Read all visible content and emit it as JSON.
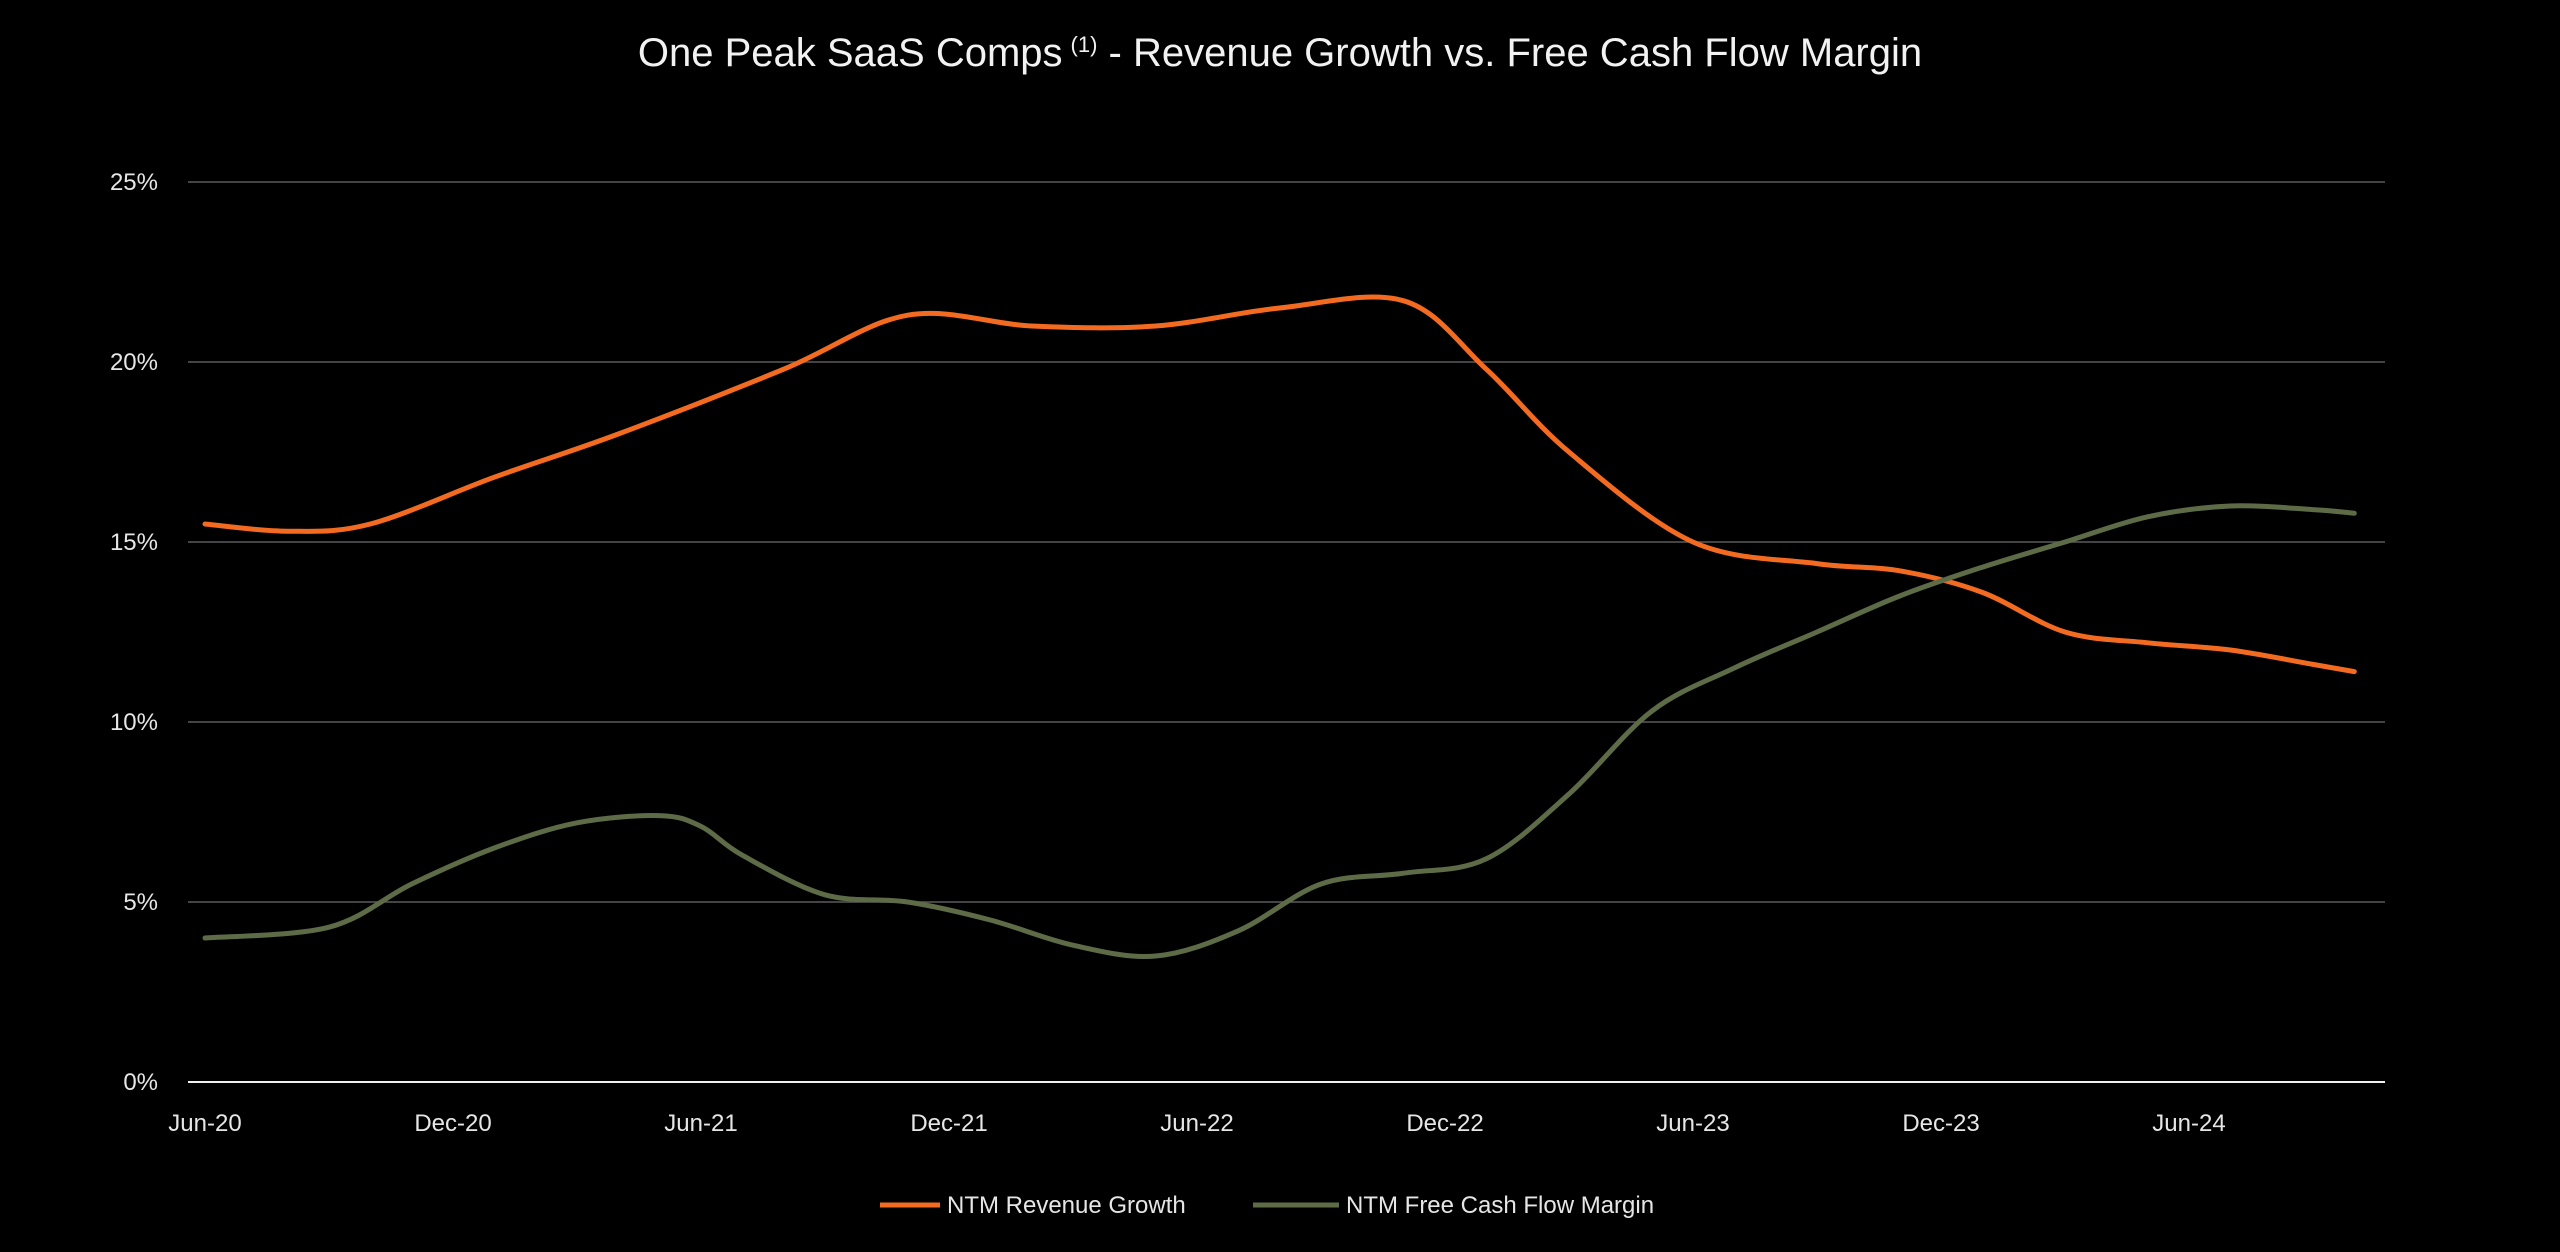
{
  "chart_data": {
    "type": "line",
    "title": "One Peak SaaS Comps",
    "title_superscript": "(1)",
    "title_rest": " - Revenue Growth vs. Free Cash Flow Margin",
    "xlabel": "",
    "ylabel": "",
    "x_tick_labels": [
      "Jun-20",
      "Dec-20",
      "Jun-21",
      "Dec-21",
      "Jun-22",
      "Dec-22",
      "Jun-23",
      "Dec-23",
      "Jun-24"
    ],
    "y_tick_labels": [
      "0%",
      "5%",
      "10%",
      "15%",
      "20%",
      "25%"
    ],
    "ylim": [
      0,
      25
    ],
    "y_ticks": [
      0,
      5,
      10,
      15,
      20,
      25
    ],
    "xlim": [
      0,
      52
    ],
    "grid": true,
    "legend_position": "bottom-center",
    "series": [
      {
        "name": "NTM Revenue Growth",
        "color": "#f26b21",
        "x": [
          0,
          2,
          4,
          7,
          10,
          14,
          17,
          20,
          23,
          26,
          29,
          31,
          33,
          36,
          39,
          41,
          43,
          45,
          47,
          49,
          51,
          52
        ],
        "y": [
          15.5,
          15.3,
          15.5,
          16.8,
          18.0,
          19.8,
          21.3,
          21.0,
          21.0,
          21.5,
          21.7,
          19.8,
          17.5,
          15.0,
          14.4,
          14.2,
          13.6,
          12.5,
          12.2,
          12.0,
          11.6,
          11.4
        ]
      },
      {
        "name": "NTM Free Cash Flow Margin",
        "color": "#5e6b47",
        "x": [
          0,
          3,
          5,
          7,
          9,
          11,
          12,
          13,
          15,
          17,
          19,
          21,
          23,
          25,
          27,
          29,
          31,
          33,
          35,
          37,
          39,
          41,
          43,
          45,
          47,
          49,
          51,
          52
        ],
        "y": [
          4.0,
          4.3,
          5.5,
          6.5,
          7.2,
          7.4,
          7.1,
          6.3,
          5.2,
          5.0,
          4.5,
          3.8,
          3.5,
          4.2,
          5.5,
          5.8,
          6.2,
          8.0,
          10.3,
          11.5,
          12.5,
          13.5,
          14.3,
          15.0,
          15.7,
          16.0,
          15.9,
          15.8
        ]
      }
    ]
  }
}
